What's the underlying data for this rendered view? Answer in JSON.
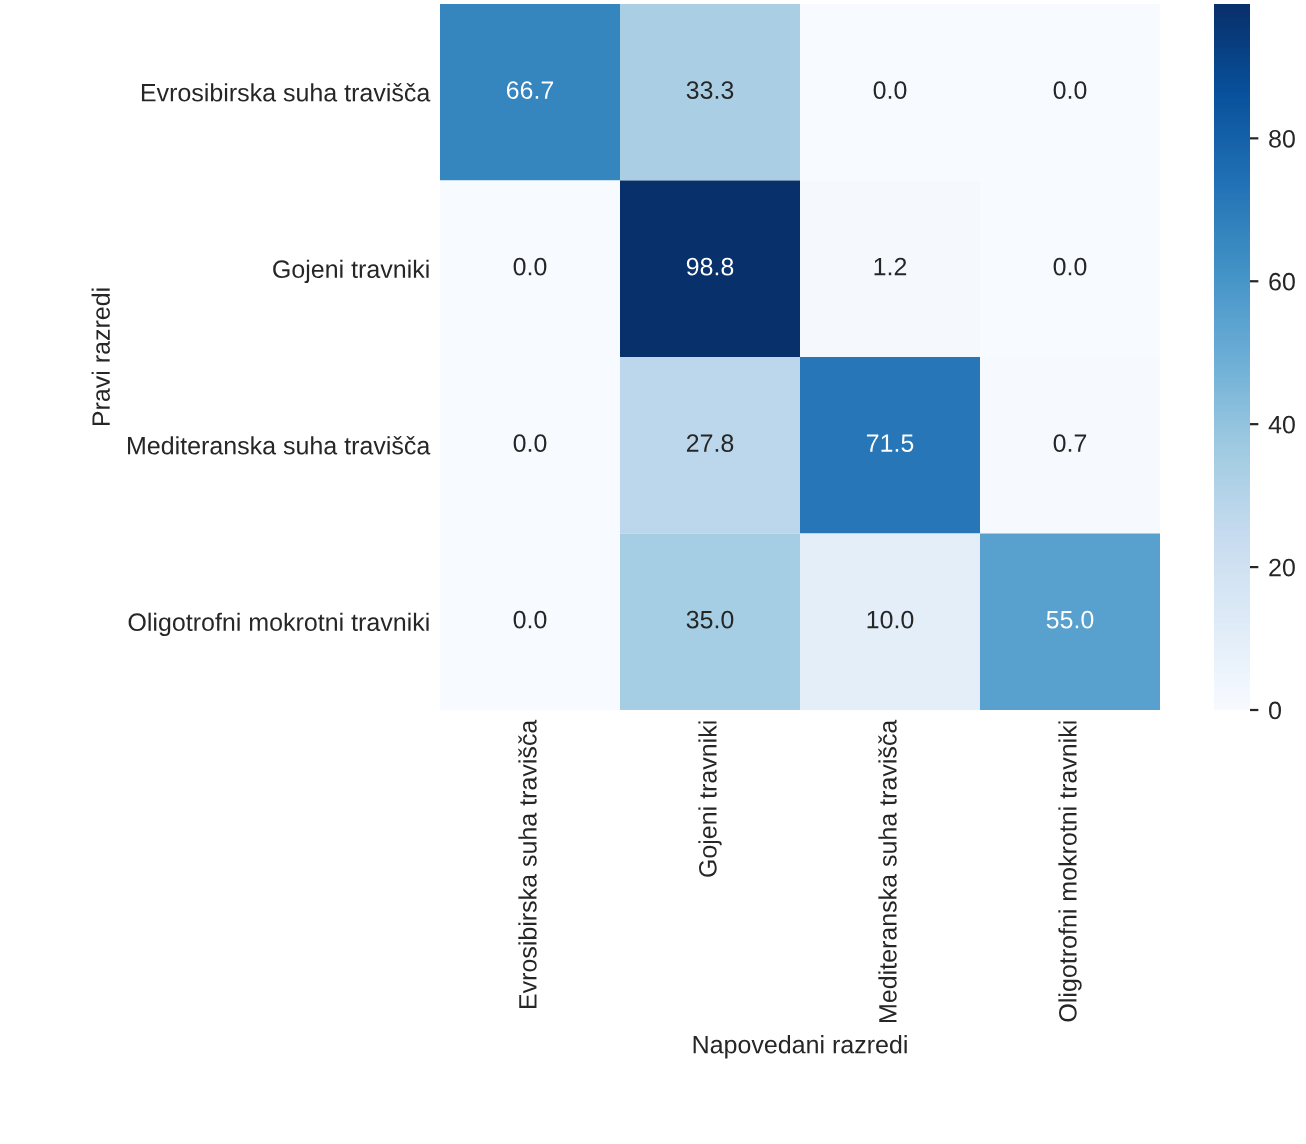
{
  "chart_data": {
    "type": "heatmap",
    "xlabel": "Napovedani razredi",
    "ylabel": "Pravi razredi",
    "categories": [
      "Evrosibirska suha travišča",
      "Gojeni travniki",
      "Mediteranska suha travišča",
      "Oligotrofni mokrotni travniki"
    ],
    "y_categories": [
      "Evrosibirska suha travišča",
      "Gojeni travniki",
      "Mediteranska suha travišča",
      "Oligotrofni mokrotni travniki"
    ],
    "cells": [
      [
        66.7,
        33.3,
        0.0,
        0.0
      ],
      [
        0.0,
        98.8,
        1.2,
        0.0
      ],
      [
        0.0,
        27.8,
        71.5,
        0.7
      ],
      [
        0.0,
        35.0,
        10.0,
        55.0
      ]
    ],
    "cell_labels": [
      [
        "66.7",
        "33.3",
        "0.0",
        "0.0"
      ],
      [
        "0.0",
        "98.8",
        "1.2",
        "0.0"
      ],
      [
        "0.0",
        "27.8",
        "71.5",
        "0.7"
      ],
      [
        "0.0",
        "35.0",
        "10.0",
        "55.0"
      ]
    ],
    "clim": [
      0,
      98.8
    ],
    "cticks": [
      0,
      20,
      40,
      60,
      80
    ]
  }
}
